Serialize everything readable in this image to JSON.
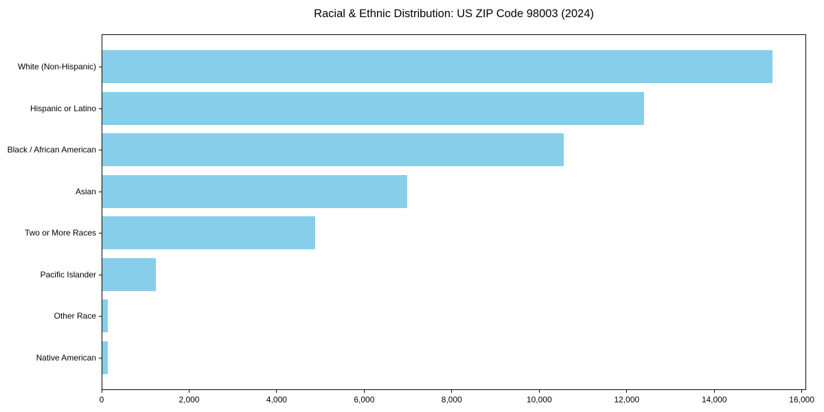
{
  "title": "Racial & Ethnic Distribution: US ZIP Code 98003 (2024)",
  "colors": {
    "bar": "#87CEEB",
    "axis": "#000000",
    "text": "#000000",
    "background": "#FFFFFF"
  },
  "chart_data": {
    "type": "bar",
    "orientation": "horizontal",
    "title": "Racial & Ethnic Distribution: US ZIP Code 98003 (2024)",
    "categories": [
      "White (Non-Hispanic)",
      "Hispanic or Latino",
      "Black / African American",
      "Asian",
      "Two or More Races",
      "Pacific Islander",
      "Other Race",
      "Native American"
    ],
    "values": [
      15350,
      12410,
      10560,
      6980,
      4880,
      1220,
      120,
      130
    ],
    "xlabel": "",
    "ylabel": "",
    "xlim": [
      0,
      16100
    ],
    "x_ticks": [
      0,
      2000,
      4000,
      6000,
      8000,
      10000,
      12000,
      14000,
      16000
    ],
    "x_tick_labels": [
      "0",
      "2,000",
      "4,000",
      "6,000",
      "8,000",
      "10,000",
      "12,000",
      "14,000",
      "16,000"
    ],
    "grid": false,
    "legend": null,
    "bar_color": "#87CEEB"
  }
}
